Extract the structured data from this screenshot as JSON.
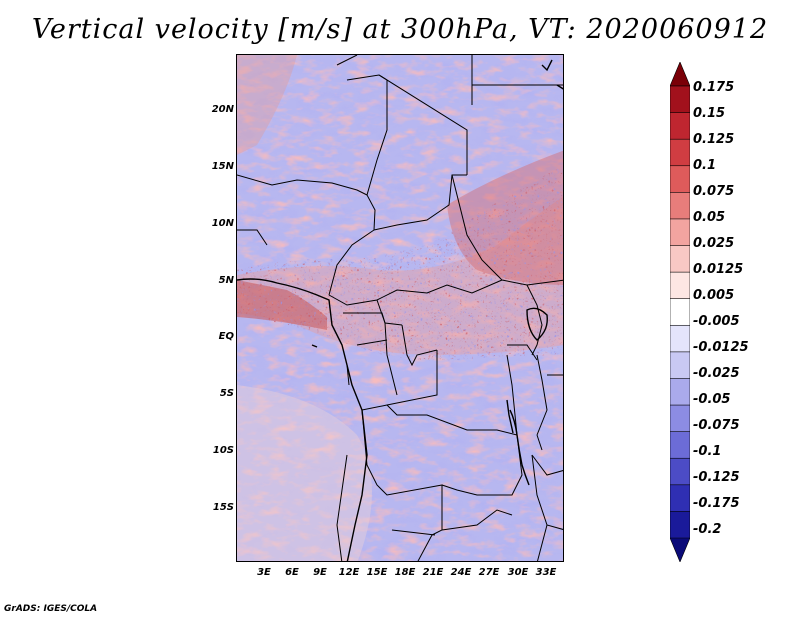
{
  "title": "Vertical velocity [m/s] at 300hPa, VT: 2020060912",
  "map": {
    "variable": "Vertical velocity",
    "units": "m/s",
    "level": "300hPa",
    "valid_time": "2020060912",
    "lat_labels": [
      "20N",
      "15N",
      "10N",
      "5N",
      "EQ",
      "5S",
      "10S",
      "15S"
    ],
    "lon_labels": [
      "3E",
      "6E",
      "9E",
      "12E",
      "15E",
      "18E",
      "21E",
      "24E",
      "27E",
      "30E",
      "33E"
    ]
  },
  "colorbar": {
    "levels": [
      "0.175",
      "0.15",
      "0.125",
      "0.1",
      "0.075",
      "0.05",
      "0.025",
      "0.0125",
      "0.005",
      "-0.005",
      "-0.0125",
      "-0.025",
      "-0.05",
      "-0.075",
      "-0.1",
      "-0.125",
      "-0.175",
      "-0.2"
    ],
    "colors": [
      "#7a0008",
      "#a2111c",
      "#bf2630",
      "#d03d42",
      "#de5b5b",
      "#e87d7b",
      "#f2a4a0",
      "#f8c8c4",
      "#fde6e3",
      "#ffffff",
      "#e4e4fb",
      "#c9c9f3",
      "#aaaaec",
      "#8c8ce3",
      "#6c6cd7",
      "#4c4cc6",
      "#2f2fb3",
      "#1a1a9a",
      "#0a0a78"
    ]
  },
  "footer": "GrADS: IGES/COLA"
}
